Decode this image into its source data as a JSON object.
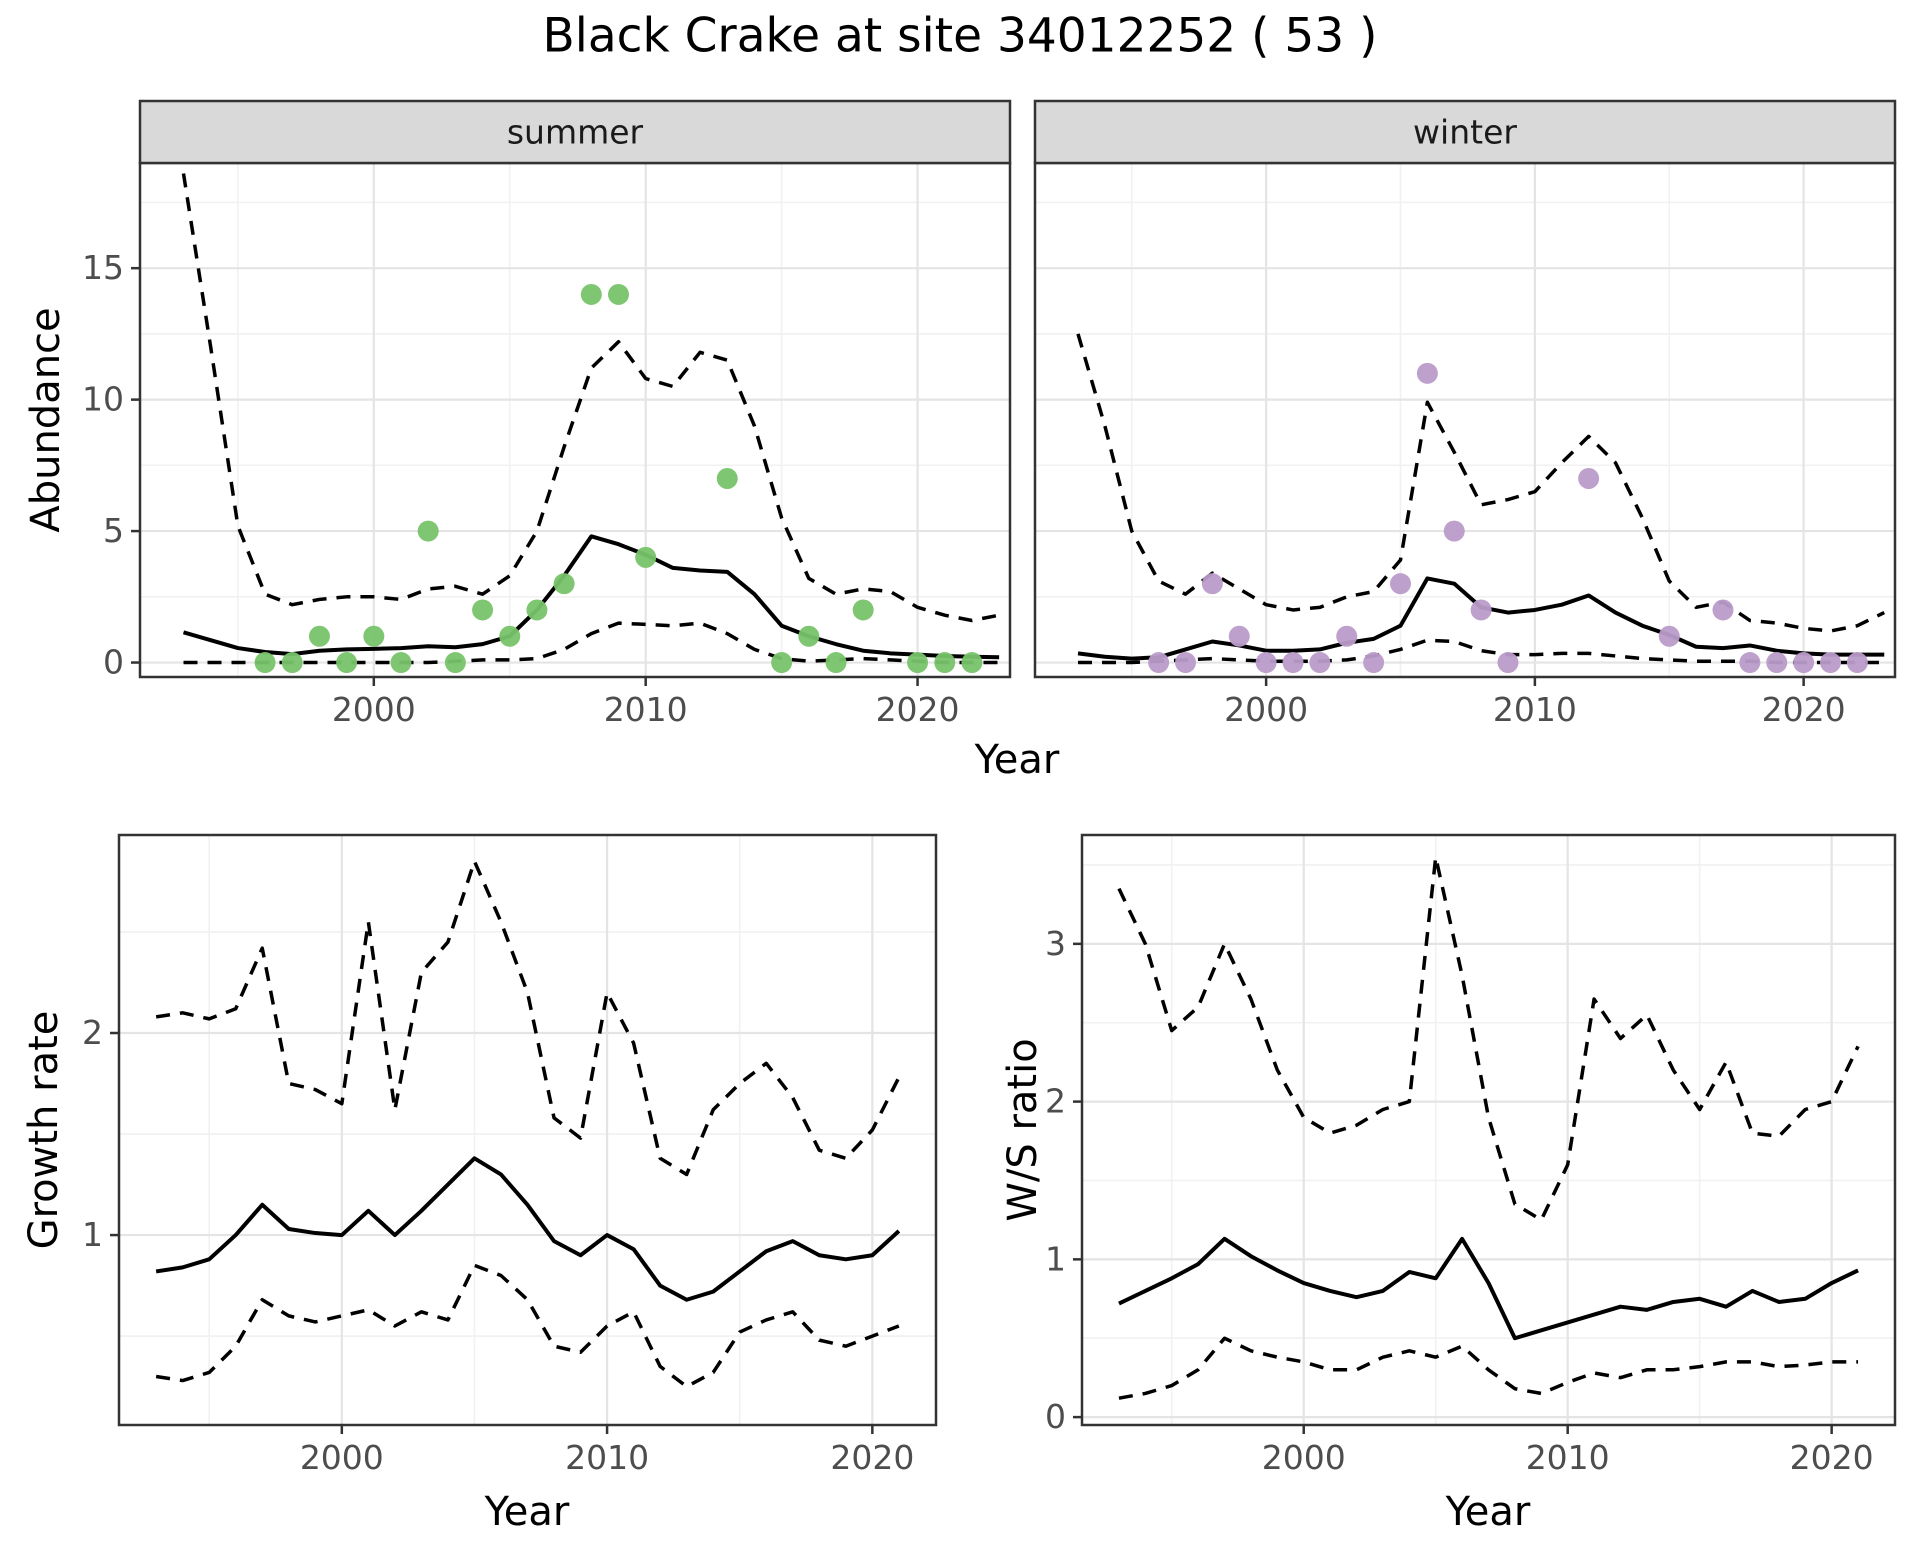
{
  "title": "Black Crake at site 34012252 ( 53 )",
  "colors": {
    "summer_point": "#78c36a",
    "winter_point": "#bb9bc9",
    "line": "#000000",
    "grid_major": "#e4e4e4",
    "grid_minor": "#f1f1f1",
    "strip_bg": "#d9d9d9",
    "panel_border": "#333333",
    "tick_mark": "#333333",
    "tick_text": "#4d4d4d",
    "background": "#ffffff"
  },
  "facets": [
    {
      "label": "summer"
    },
    {
      "label": "winter"
    }
  ],
  "axis_titles": {
    "abundance": "Abundance",
    "year_top": "Year",
    "growth": "Growth rate",
    "ws": "W/S ratio",
    "year_bottom_left": "Year",
    "year_bottom_right": "Year"
  },
  "chart_data": [
    {
      "id": "abundance-summer",
      "type": "line",
      "facet": "summer",
      "xlabel": "Year",
      "ylabel": "Abundance",
      "xlim": [
        1991.4,
        2023.4
      ],
      "ylim": [
        -0.55,
        19.0
      ],
      "x_ticks": [
        2000,
        2010,
        2020
      ],
      "x_minor": [
        1995,
        2005,
        2015
      ],
      "y_ticks": [
        0,
        5,
        10,
        15
      ],
      "y_tick_labels": [
        "0",
        "5",
        "10",
        "15"
      ],
      "y_minor": [
        2.5,
        7.5,
        12.5,
        17.5
      ],
      "grid": true,
      "years": [
        1993,
        1994,
        1995,
        1996,
        1997,
        1998,
        1999,
        2000,
        2001,
        2002,
        2003,
        2004,
        2005,
        2006,
        2007,
        2008,
        2009,
        2010,
        2011,
        2012,
        2013,
        2014,
        2015,
        2016,
        2017,
        2018,
        2019,
        2020,
        2021,
        2022,
        2023
      ],
      "series": [
        {
          "name": "mean",
          "style": "solid",
          "values": [
            1.15,
            0.85,
            0.55,
            0.4,
            0.32,
            0.45,
            0.5,
            0.52,
            0.55,
            0.62,
            0.58,
            0.7,
            1.0,
            2.0,
            3.3,
            4.8,
            4.5,
            4.1,
            3.6,
            3.5,
            3.45,
            2.6,
            1.4,
            1.0,
            0.7,
            0.45,
            0.35,
            0.3,
            0.25,
            0.22,
            0.2
          ]
        },
        {
          "name": "upper_ci",
          "style": "dashed",
          "values": [
            18.6,
            12.0,
            5.2,
            2.6,
            2.2,
            2.4,
            2.5,
            2.5,
            2.4,
            2.8,
            2.9,
            2.6,
            3.3,
            5.0,
            8.2,
            11.2,
            12.2,
            10.8,
            10.5,
            11.8,
            11.5,
            9.0,
            5.5,
            3.2,
            2.6,
            2.8,
            2.7,
            2.1,
            1.8,
            1.6,
            1.8
          ]
        },
        {
          "name": "lower_ci",
          "style": "dashed",
          "values": [
            0,
            0,
            0,
            0,
            0,
            0,
            0,
            0,
            0,
            0,
            0.05,
            0.1,
            0.1,
            0.15,
            0.5,
            1.1,
            1.5,
            1.45,
            1.4,
            1.5,
            1.1,
            0.5,
            0.15,
            0.05,
            0.1,
            0.15,
            0.1,
            0.05,
            0,
            0,
            0
          ]
        }
      ],
      "points": {
        "color_key": "summer_point",
        "data": [
          [
            1996,
            0
          ],
          [
            1997,
            0
          ],
          [
            1998,
            1
          ],
          [
            1999,
            0
          ],
          [
            2000,
            1
          ],
          [
            2001,
            0
          ],
          [
            2002,
            5
          ],
          [
            2003,
            0
          ],
          [
            2004,
            2
          ],
          [
            2005,
            1
          ],
          [
            2006,
            2
          ],
          [
            2007,
            3
          ],
          [
            2008,
            14
          ],
          [
            2009,
            14
          ],
          [
            2010,
            4
          ],
          [
            2013,
            7
          ],
          [
            2015,
            0
          ],
          [
            2016,
            1
          ],
          [
            2017,
            0
          ],
          [
            2018,
            2
          ],
          [
            2020,
            0
          ],
          [
            2021,
            0
          ],
          [
            2022,
            0
          ]
        ]
      }
    },
    {
      "id": "abundance-winter",
      "type": "line",
      "facet": "winter",
      "xlabel": "Year",
      "ylabel": "Abundance",
      "xlim": [
        1991.4,
        2023.4
      ],
      "ylim": [
        -0.55,
        19.0
      ],
      "x_ticks": [
        2000,
        2010,
        2020
      ],
      "x_minor": [
        1995,
        2005,
        2015
      ],
      "y_ticks": [
        0,
        5,
        10,
        15
      ],
      "y_tick_labels": [],
      "y_minor": [
        2.5,
        7.5,
        12.5,
        17.5
      ],
      "grid": true,
      "years": [
        1993,
        1994,
        1995,
        1996,
        1997,
        1998,
        1999,
        2000,
        2001,
        2002,
        2003,
        2004,
        2005,
        2006,
        2007,
        2008,
        2009,
        2010,
        2011,
        2012,
        2013,
        2014,
        2015,
        2016,
        2017,
        2018,
        2019,
        2020,
        2021,
        2022,
        2023
      ],
      "series": [
        {
          "name": "mean",
          "style": "solid",
          "values": [
            0.35,
            0.22,
            0.15,
            0.2,
            0.5,
            0.8,
            0.65,
            0.45,
            0.45,
            0.5,
            0.75,
            0.9,
            1.4,
            3.2,
            3.0,
            2.1,
            1.9,
            2.0,
            2.2,
            2.55,
            1.9,
            1.4,
            1.05,
            0.6,
            0.55,
            0.65,
            0.45,
            0.35,
            0.3,
            0.3,
            0.3
          ]
        },
        {
          "name": "upper_ci",
          "style": "dashed",
          "values": [
            12.5,
            9.0,
            5.0,
            3.1,
            2.6,
            3.4,
            2.8,
            2.2,
            2.0,
            2.1,
            2.5,
            2.7,
            3.9,
            9.9,
            8.0,
            6.0,
            6.2,
            6.5,
            7.6,
            8.6,
            7.6,
            5.5,
            3.1,
            2.1,
            2.3,
            1.6,
            1.5,
            1.3,
            1.2,
            1.4,
            1.9
          ]
        },
        {
          "name": "lower_ci",
          "style": "dashed",
          "values": [
            0,
            0,
            0,
            0.05,
            0.1,
            0.15,
            0.1,
            0.05,
            0.05,
            0.05,
            0.1,
            0.25,
            0.5,
            0.85,
            0.8,
            0.45,
            0.3,
            0.3,
            0.35,
            0.35,
            0.25,
            0.15,
            0.1,
            0.05,
            0.05,
            0.05,
            0,
            0,
            0,
            0,
            0
          ]
        }
      ],
      "points": {
        "color_key": "winter_point",
        "data": [
          [
            1996,
            0
          ],
          [
            1997,
            0
          ],
          [
            1998,
            3
          ],
          [
            1999,
            1
          ],
          [
            2000,
            0
          ],
          [
            2001,
            0
          ],
          [
            2002,
            0
          ],
          [
            2003,
            1
          ],
          [
            2004,
            0
          ],
          [
            2005,
            3
          ],
          [
            2006,
            11
          ],
          [
            2007,
            5
          ],
          [
            2008,
            2
          ],
          [
            2009,
            0
          ],
          [
            2012,
            7
          ],
          [
            2015,
            1
          ],
          [
            2017,
            2
          ],
          [
            2018,
            0
          ],
          [
            2019,
            0
          ],
          [
            2020,
            0
          ],
          [
            2021,
            0
          ],
          [
            2022,
            0
          ]
        ]
      }
    },
    {
      "id": "growth-rate",
      "type": "line",
      "xlabel": "Year",
      "ylabel": "Growth rate",
      "xlim": [
        1991.6,
        2022.4
      ],
      "ylim": [
        0.06,
        2.98
      ],
      "x_ticks": [
        2000,
        2010,
        2020
      ],
      "x_minor": [
        1995,
        2005,
        2015
      ],
      "y_ticks": [
        1,
        2
      ],
      "y_tick_labels": [
        "1",
        "2"
      ],
      "y_minor": [
        0.5,
        1.5,
        2.5
      ],
      "grid": true,
      "years": [
        1993,
        1994,
        1995,
        1996,
        1997,
        1998,
        1999,
        2000,
        2001,
        2002,
        2003,
        2004,
        2005,
        2006,
        2007,
        2008,
        2009,
        2010,
        2011,
        2012,
        2013,
        2014,
        2015,
        2016,
        2017,
        2018,
        2019,
        2020,
        2021
      ],
      "series": [
        {
          "name": "mean",
          "style": "solid",
          "values": [
            0.82,
            0.84,
            0.88,
            1.0,
            1.15,
            1.03,
            1.01,
            1.0,
            1.12,
            1.0,
            1.12,
            1.25,
            1.38,
            1.3,
            1.15,
            0.97,
            0.9,
            1.0,
            0.93,
            0.75,
            0.68,
            0.72,
            0.82,
            0.92,
            0.97,
            0.9,
            0.88,
            0.9,
            1.02
          ]
        },
        {
          "name": "upper_ci",
          "style": "dashed",
          "values": [
            2.08,
            2.1,
            2.07,
            2.12,
            2.42,
            1.75,
            1.72,
            1.65,
            2.55,
            1.62,
            2.3,
            2.45,
            2.85,
            2.55,
            2.2,
            1.58,
            1.48,
            2.2,
            1.95,
            1.38,
            1.3,
            1.62,
            1.75,
            1.85,
            1.68,
            1.42,
            1.38,
            1.52,
            1.78
          ]
        },
        {
          "name": "lower_ci",
          "style": "dashed",
          "values": [
            0.3,
            0.28,
            0.32,
            0.45,
            0.68,
            0.6,
            0.57,
            0.6,
            0.63,
            0.55,
            0.62,
            0.58,
            0.85,
            0.8,
            0.68,
            0.45,
            0.42,
            0.55,
            0.62,
            0.35,
            0.25,
            0.32,
            0.52,
            0.58,
            0.62,
            0.48,
            0.45,
            0.5,
            0.55
          ]
        }
      ]
    },
    {
      "id": "ws-ratio",
      "type": "line",
      "xlabel": "Year",
      "ylabel": "W/S ratio",
      "xlim": [
        1991.6,
        2022.4
      ],
      "ylim": [
        -0.05,
        3.69
      ],
      "x_ticks": [
        2000,
        2010,
        2020
      ],
      "x_minor": [
        1995,
        2005,
        2015
      ],
      "y_ticks": [
        0,
        1,
        2,
        3
      ],
      "y_tick_labels": [
        "0",
        "1",
        "2",
        "3"
      ],
      "y_minor": [
        0.5,
        1.5,
        2.5,
        3.5
      ],
      "grid": true,
      "years": [
        1993,
        1994,
        1995,
        1996,
        1997,
        1998,
        1999,
        2000,
        2001,
        2002,
        2003,
        2004,
        2005,
        2006,
        2007,
        2008,
        2009,
        2010,
        2011,
        2012,
        2013,
        2014,
        2015,
        2016,
        2017,
        2018,
        2019,
        2020,
        2021
      ],
      "series": [
        {
          "name": "mean",
          "style": "solid",
          "values": [
            0.72,
            0.8,
            0.88,
            0.97,
            1.13,
            1.02,
            0.93,
            0.85,
            0.8,
            0.76,
            0.8,
            0.92,
            0.88,
            1.13,
            0.85,
            0.5,
            0.55,
            0.6,
            0.65,
            0.7,
            0.68,
            0.73,
            0.75,
            0.7,
            0.8,
            0.73,
            0.75,
            0.85,
            0.93
          ]
        },
        {
          "name": "upper_ci",
          "style": "dashed",
          "values": [
            3.35,
            3.0,
            2.45,
            2.6,
            3.0,
            2.65,
            2.2,
            1.9,
            1.8,
            1.85,
            1.95,
            2.0,
            3.55,
            2.8,
            1.9,
            1.35,
            1.25,
            1.6,
            2.65,
            2.4,
            2.55,
            2.2,
            1.95,
            2.25,
            1.8,
            1.78,
            1.95,
            2.0,
            2.35
          ]
        },
        {
          "name": "lower_ci",
          "style": "dashed",
          "values": [
            0.12,
            0.15,
            0.2,
            0.3,
            0.5,
            0.42,
            0.38,
            0.35,
            0.3,
            0.3,
            0.38,
            0.42,
            0.38,
            0.45,
            0.3,
            0.18,
            0.15,
            0.22,
            0.28,
            0.25,
            0.3,
            0.3,
            0.32,
            0.35,
            0.35,
            0.32,
            0.33,
            0.35,
            0.35
          ]
        }
      ]
    }
  ]
}
